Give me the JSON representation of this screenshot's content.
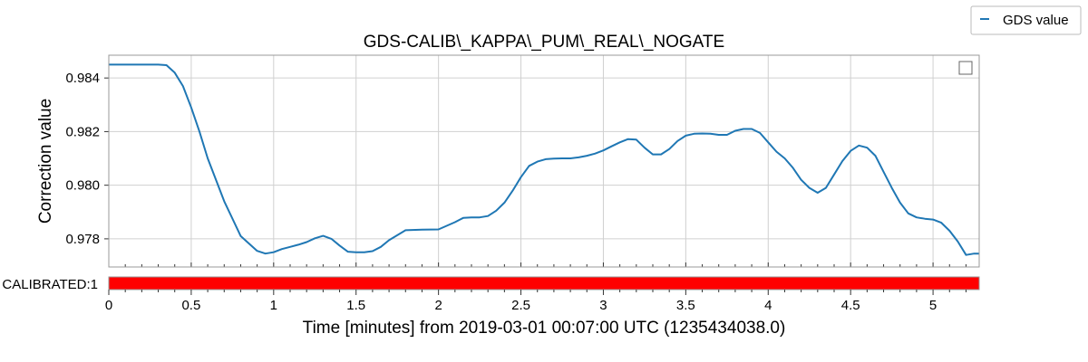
{
  "chart_data": {
    "type": "line",
    "title": "GDS-CALIB\\_KAPPA\\_PUM\\_REAL\\_NOGATE",
    "xlabel": "Time [minutes] from 2019-03-01 00:07:00 UTC (1235434038.0)",
    "ylabel": "Correction value",
    "xlim": [
      0,
      5.28
    ],
    "ylim": [
      0.97695,
      0.98485
    ],
    "x_ticks": [
      "0",
      "0.5",
      "1",
      "1.5",
      "2",
      "2.5",
      "3",
      "3.5",
      "4",
      "4.5",
      "5"
    ],
    "x_tick_values": [
      0,
      0.5,
      1,
      1.5,
      2,
      2.5,
      3,
      3.5,
      4,
      4.5,
      5
    ],
    "y_ticks": [
      "0.978",
      "0.980",
      "0.982",
      "0.984"
    ],
    "y_tick_values": [
      0.978,
      0.98,
      0.982,
      0.984
    ],
    "grid": true,
    "legend_placement": "outside top-right",
    "series": [
      {
        "name": "GDS value",
        "color": "#1f77b4",
        "x": [
          0,
          0.1,
          0.2,
          0.3,
          0.35,
          0.4,
          0.45,
          0.5,
          0.55,
          0.6,
          0.7,
          0.8,
          0.9,
          0.95,
          1.0,
          1.05,
          1.1,
          1.15,
          1.2,
          1.25,
          1.3,
          1.35,
          1.4,
          1.45,
          1.5,
          1.55,
          1.6,
          1.65,
          1.7,
          1.8,
          1.9,
          2.0,
          2.1,
          2.15,
          2.2,
          2.25,
          2.3,
          2.35,
          2.4,
          2.45,
          2.5,
          2.55,
          2.6,
          2.65,
          2.7,
          2.75,
          2.8,
          2.85,
          2.9,
          2.95,
          3.0,
          3.05,
          3.1,
          3.15,
          3.2,
          3.25,
          3.3,
          3.35,
          3.4,
          3.45,
          3.5,
          3.55,
          3.6,
          3.65,
          3.7,
          3.75,
          3.8,
          3.85,
          3.9,
          3.95,
          4.0,
          4.05,
          4.1,
          4.15,
          4.2,
          4.25,
          4.3,
          4.35,
          4.4,
          4.45,
          4.5,
          4.55,
          4.6,
          4.65,
          4.7,
          4.75,
          4.8,
          4.85,
          4.9,
          4.95,
          5.0,
          5.05,
          5.1,
          5.15,
          5.2,
          5.25,
          5.28
        ],
        "y": [
          0.9845,
          0.9845,
          0.9845,
          0.9845,
          0.98448,
          0.9842,
          0.9837,
          0.9829,
          0.982,
          0.981,
          0.9794,
          0.9781,
          0.97755,
          0.97745,
          0.9775,
          0.97762,
          0.9777,
          0.97778,
          0.97788,
          0.97802,
          0.97811,
          0.978,
          0.97775,
          0.97752,
          0.9775,
          0.9775,
          0.97754,
          0.9777,
          0.97795,
          0.97832,
          0.97834,
          0.97835,
          0.97862,
          0.97878,
          0.9788,
          0.9788,
          0.97885,
          0.97905,
          0.97935,
          0.9798,
          0.9803,
          0.98072,
          0.98088,
          0.98097,
          0.98099,
          0.981,
          0.981,
          0.98104,
          0.9811,
          0.98118,
          0.9813,
          0.98145,
          0.9816,
          0.98172,
          0.9817,
          0.9814,
          0.98115,
          0.98115,
          0.98135,
          0.98165,
          0.98185,
          0.98192,
          0.98193,
          0.98192,
          0.98188,
          0.98188,
          0.98203,
          0.9821,
          0.9821,
          0.98195,
          0.9816,
          0.98125,
          0.981,
          0.98065,
          0.9802,
          0.9799,
          0.97972,
          0.9799,
          0.9804,
          0.9809,
          0.98128,
          0.98148,
          0.9814,
          0.9811,
          0.9805,
          0.9799,
          0.97935,
          0.97895,
          0.9788,
          0.97875,
          0.97872,
          0.9786,
          0.9783,
          0.9779,
          0.9774,
          0.97745,
          0.97745
        ]
      }
    ],
    "state_bar": {
      "label": "CALIBRATED:1",
      "color": "#ff0000",
      "x_range": [
        0,
        5.28
      ]
    }
  }
}
